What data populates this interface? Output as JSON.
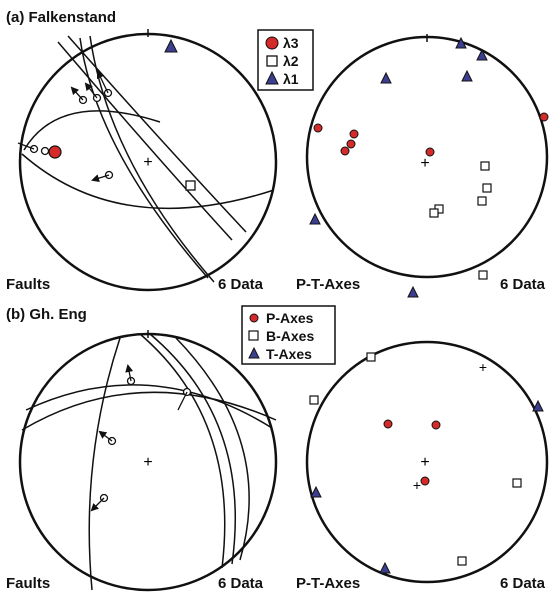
{
  "panel_a": {
    "title": "(a) Falkenstand",
    "legend": [
      {
        "symbol": "red-circle",
        "label": "λ3"
      },
      {
        "symbol": "open-square",
        "label": "λ2"
      },
      {
        "symbol": "blue-triangle",
        "label": "λ1"
      }
    ],
    "faults_label": "Faults",
    "faults_count": "6 Data",
    "pt_label": "P-T-Axes",
    "pt_count": "6 Data"
  },
  "panel_b": {
    "title": "(b) Gh. Eng",
    "legend": [
      {
        "symbol": "red-circle",
        "label": "P-Axes"
      },
      {
        "symbol": "open-square",
        "label": "B-Axes"
      },
      {
        "symbol": "blue-triangle",
        "label": "T-Axes"
      }
    ],
    "faults_label": "Faults",
    "faults_count": "6 Data",
    "pt_label": "P-T-Axes",
    "pt_count": "6 Data"
  },
  "colors": {
    "p_axis": "#d42a2a",
    "t_axis": "#3c3f8f",
    "line": "#111111"
  }
}
